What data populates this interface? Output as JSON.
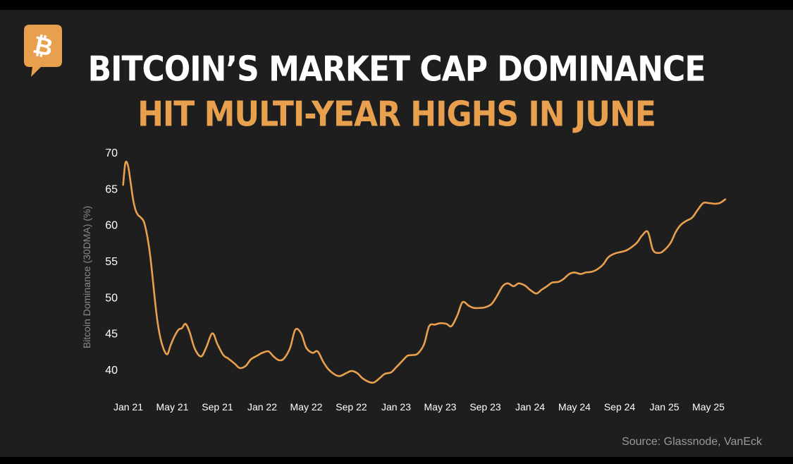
{
  "header": {
    "title_line1": "BITCOIN’S MARKET CAP DOMINANCE",
    "title_line2": "HIT MULTI-YEAR HIGHS IN JUNE"
  },
  "logo": {
    "icon": "bitcoin-icon",
    "color": "#e8a04f"
  },
  "source": "Source: Glassnode, VanEck",
  "colors": {
    "background": "#1f1e1e",
    "line": "#e8a04f",
    "title_primary": "#ffffff",
    "title_accent": "#e8a04f",
    "axis_text": "#ffffff",
    "axis_label": "#8a8a8a"
  },
  "chart_data": {
    "type": "line",
    "title": "",
    "xlabel": "",
    "ylabel": "Bitcoin Dominance (30DMA) (%)",
    "ylim": [
      37.5,
      70
    ],
    "yticks": [
      40,
      45,
      50,
      55,
      60,
      65,
      70
    ],
    "grid": false,
    "legend": false,
    "x_ticks": [
      "Jan 21",
      "May 21",
      "Sep 21",
      "Jan 22",
      "May 22",
      "Sep 22",
      "Jan 23",
      "May 23",
      "Sep 23",
      "Jan 24",
      "May 24",
      "Sep 24",
      "Jan 25",
      "May 25"
    ],
    "series": [
      {
        "name": "",
        "x": [
          "2021-01-01",
          "2021-01-07",
          "2021-01-14",
          "2021-01-21",
          "2021-01-28",
          "2021-02-04",
          "2021-02-11",
          "2021-02-18",
          "2021-03-01",
          "2021-03-15",
          "2021-04-01",
          "2021-04-10",
          "2021-04-20",
          "2021-05-01",
          "2021-05-10",
          "2021-05-20",
          "2021-06-01",
          "2021-06-10",
          "2021-06-20",
          "2021-07-01",
          "2021-07-15",
          "2021-08-01",
          "2021-08-15",
          "2021-09-01",
          "2021-09-15",
          "2021-10-01",
          "2021-10-15",
          "2021-11-01",
          "2021-11-15",
          "2021-12-01",
          "2021-12-15",
          "2022-01-01",
          "2022-01-15",
          "2022-02-01",
          "2022-02-15",
          "2022-03-01",
          "2022-03-15",
          "2022-04-01",
          "2022-04-15",
          "2022-05-01",
          "2022-05-15",
          "2022-06-01",
          "2022-06-15",
          "2022-07-01",
          "2022-07-15",
          "2022-08-01",
          "2022-08-15",
          "2022-09-01",
          "2022-09-15",
          "2022-10-01",
          "2022-10-15",
          "2022-11-01",
          "2022-11-15",
          "2022-12-01",
          "2022-12-15",
          "2023-01-01",
          "2023-01-15",
          "2023-02-01",
          "2023-02-15",
          "2023-03-01",
          "2023-03-15",
          "2023-04-01",
          "2023-04-15",
          "2023-05-01",
          "2023-05-15",
          "2023-06-01",
          "2023-06-15",
          "2023-07-01",
          "2023-07-15",
          "2023-08-01",
          "2023-08-15",
          "2023-09-01",
          "2023-09-15",
          "2023-10-01",
          "2023-10-15",
          "2023-11-01",
          "2023-11-15",
          "2023-12-01",
          "2023-12-15",
          "2024-01-01",
          "2024-01-15",
          "2024-02-01",
          "2024-02-15",
          "2024-03-01",
          "2024-03-15",
          "2024-04-01",
          "2024-04-15",
          "2024-05-01",
          "2024-05-15",
          "2024-06-01",
          "2024-06-15",
          "2024-07-01",
          "2024-07-15",
          "2024-08-01",
          "2024-08-15",
          "2024-09-01",
          "2024-09-15",
          "2024-10-01",
          "2024-10-15",
          "2024-11-01",
          "2024-11-15",
          "2024-12-01",
          "2024-12-15",
          "2025-01-01",
          "2025-01-15",
          "2025-02-01",
          "2025-02-15",
          "2025-03-01",
          "2025-03-15",
          "2025-04-01",
          "2025-04-15",
          "2025-05-01",
          "2025-05-15",
          "2025-06-01",
          "2025-06-15",
          "2025-06-30"
        ],
        "values": [
          65.5,
          68.5,
          68.2,
          66.0,
          63.5,
          62.0,
          61.3,
          61.0,
          60.0,
          56.0,
          48.0,
          45.0,
          43.0,
          42.1,
          43.3,
          44.5,
          45.5,
          45.7,
          46.3,
          45.2,
          42.9,
          41.8,
          43.0,
          45.0,
          43.5,
          42.0,
          41.5,
          40.8,
          40.2,
          40.5,
          41.4,
          41.9,
          42.3,
          42.5,
          41.8,
          41.3,
          41.5,
          43.0,
          45.5,
          45.0,
          43.0,
          42.3,
          42.5,
          41.0,
          40.0,
          39.3,
          39.1,
          39.5,
          39.8,
          39.5,
          38.8,
          38.3,
          38.2,
          38.8,
          39.4,
          39.6,
          40.3,
          41.2,
          41.9,
          42.0,
          42.2,
          43.5,
          46.0,
          46.2,
          46.4,
          46.3,
          46.0,
          47.5,
          49.3,
          48.8,
          48.5,
          48.5,
          48.6,
          49.0,
          50.0,
          51.5,
          51.9,
          51.5,
          51.9,
          51.6,
          51.0,
          50.5,
          51.0,
          51.5,
          52.0,
          52.1,
          52.5,
          53.2,
          53.4,
          53.2,
          53.4,
          53.5,
          53.8,
          54.5,
          55.5,
          56.0,
          56.2,
          56.4,
          56.8,
          57.5,
          58.5,
          59.0,
          56.5,
          56.1,
          56.5,
          57.5,
          59.0,
          60.0,
          60.5,
          61.0,
          62.0,
          63.0,
          63.0,
          62.9,
          63.0,
          63.5
        ]
      }
    ]
  }
}
